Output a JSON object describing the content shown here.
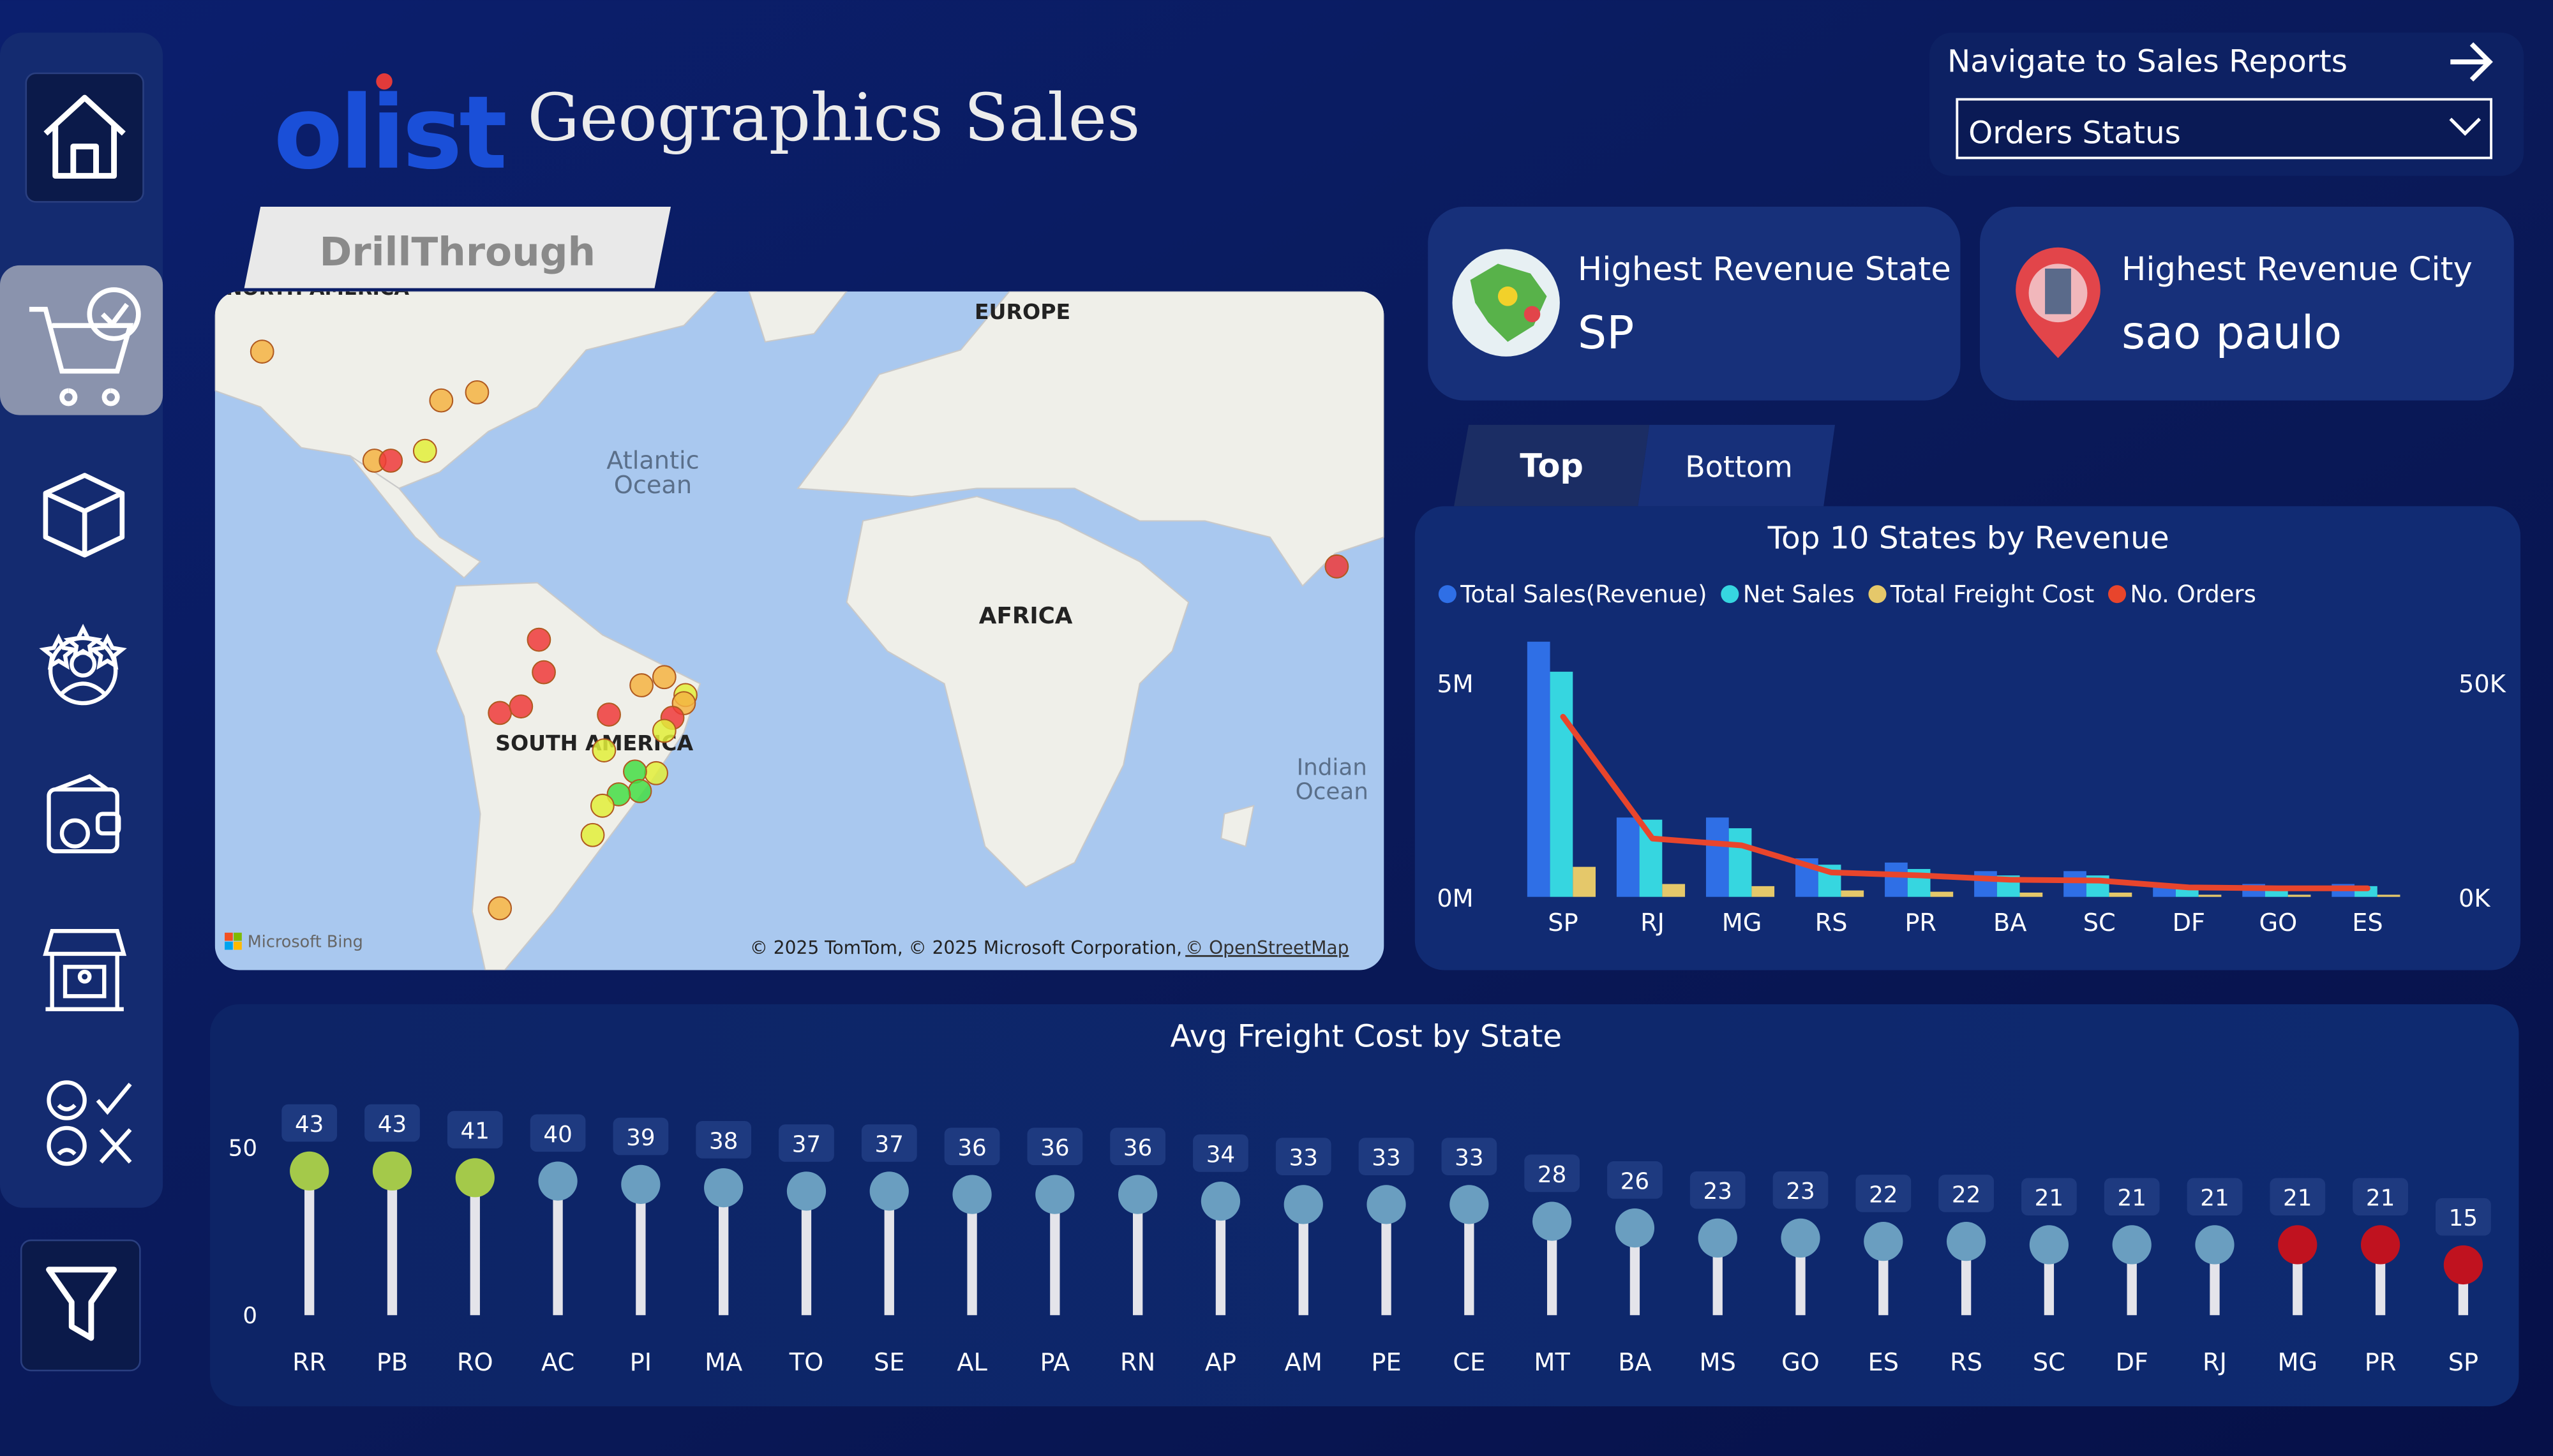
{
  "header": {
    "logo": "olist",
    "title": "Geographics Sales"
  },
  "navigation": {
    "label": "Navigate to Sales Reports",
    "dropdown": "Orders Status"
  },
  "drillthrough": "DrillThrough",
  "map": {
    "labels": [
      [
        "NORTH AMERICA"
      ],
      [
        "EUROPE"
      ],
      [
        "Atlantic",
        "Ocean"
      ],
      [
        "AFRICA"
      ],
      [
        "SOUTH AMERICA"
      ],
      [
        "Indian",
        "Ocean"
      ]
    ],
    "attribution": "© 2025 TomTom, © 2025 Microsoft Corporation,",
    "osm": "© OpenStreetMap",
    "provider": "Microsoft Bing"
  },
  "kpis": [
    {
      "label": "Highest Revenue State",
      "value": "SP"
    },
    {
      "label": "Highest Revenue City",
      "value": "sao paulo"
    }
  ],
  "tabs": [
    "Top",
    "Bottom"
  ],
  "chart_data": [
    {
      "type": "bar",
      "title": "Top 10 States by Revenue",
      "categories": [
        "SP",
        "RJ",
        "MG",
        "RS",
        "PR",
        "BA",
        "SC",
        "DF",
        "GO",
        "ES"
      ],
      "series": [
        {
          "name": "Total Sales(Revenue)",
          "color": "#2f6fe6",
          "values": [
            5950000,
            1850000,
            1850000,
            900000,
            800000,
            600000,
            600000,
            300000,
            300000,
            300000
          ]
        },
        {
          "name": "Net Sales",
          "color": "#36d6e0",
          "values": [
            5250000,
            1800000,
            1600000,
            750000,
            650000,
            500000,
            500000,
            250000,
            250000,
            250000
          ]
        },
        {
          "name": "Total Freight Cost",
          "color": "#e5c86a",
          "values": [
            700000,
            300000,
            250000,
            150000,
            120000,
            100000,
            100000,
            50000,
            50000,
            50000
          ]
        },
        {
          "name": "No. Orders",
          "color": "#e8452c",
          "type": "line",
          "axis": "y2",
          "values": [
            42000,
            13600,
            12000,
            5700,
            5000,
            4000,
            3800,
            2200,
            2000,
            2000
          ]
        }
      ],
      "ylim": [
        0,
        6300000
      ],
      "yticks": [
        {
          "value": 0,
          "label": "0M"
        },
        {
          "value": 5000000,
          "label": "5M"
        }
      ],
      "y2lim": [
        0,
        63000
      ],
      "y2ticks": [
        {
          "value": 0,
          "label": "0K"
        },
        {
          "value": 50000,
          "label": "50K"
        }
      ]
    },
    {
      "type": "lollipop",
      "title": "Avg Freight Cost by State",
      "categories": [
        "RR",
        "PB",
        "RO",
        "AC",
        "PI",
        "MA",
        "TO",
        "SE",
        "AL",
        "PA",
        "RN",
        "AP",
        "AM",
        "PE",
        "CE",
        "MT",
        "BA",
        "MS",
        "GO",
        "ES",
        "RS",
        "SC",
        "DF",
        "RJ",
        "MG",
        "PR",
        "SP"
      ],
      "values": [
        43,
        43,
        41,
        40,
        39,
        38,
        37,
        37,
        36,
        36,
        36,
        34,
        33,
        33,
        33,
        28,
        26,
        23,
        23,
        22,
        22,
        21,
        21,
        21,
        21,
        21,
        15
      ],
      "colors": [
        "#a4c94a",
        "#a4c94a",
        "#a4c94a",
        "#6a9ec0",
        "#6a9ec0",
        "#6a9ec0",
        "#6a9ec0",
        "#6a9ec0",
        "#6a9ec0",
        "#6a9ec0",
        "#6a9ec0",
        "#6a9ec0",
        "#6a9ec0",
        "#6a9ec0",
        "#6a9ec0",
        "#6a9ec0",
        "#6a9ec0",
        "#6a9ec0",
        "#6a9ec0",
        "#6a9ec0",
        "#6a9ec0",
        "#6a9ec0",
        "#6a9ec0",
        "#6a9ec0",
        "#c0121f",
        "#c0121f",
        "#c0121f"
      ],
      "ylim": [
        0,
        50
      ],
      "yticks": [
        0,
        50
      ]
    }
  ]
}
